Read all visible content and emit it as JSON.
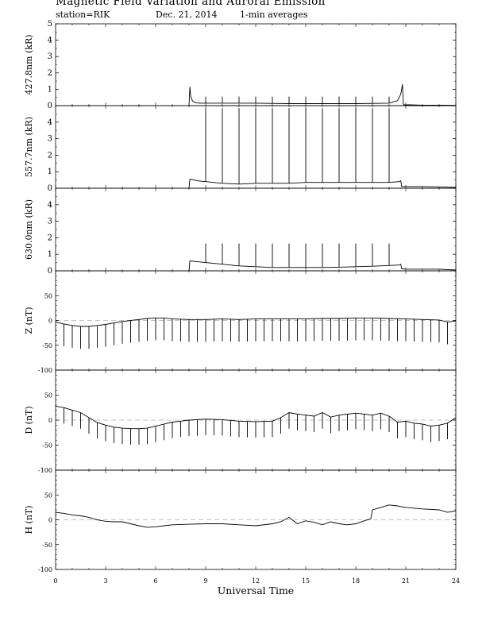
{
  "header": {
    "title": "Magnetic Field Variation and Auroral Emission",
    "station": "station=RIK",
    "date": "Dec. 21, 2014",
    "averaging": "1-min averages"
  },
  "chart_data": {
    "type": "line",
    "xlabel": "Universal Time",
    "x_ticks": [
      "0",
      "3",
      "6",
      "9",
      "12",
      "15",
      "18",
      "21",
      "24"
    ],
    "xlim": [
      0,
      24
    ],
    "panels": [
      {
        "id": "p4278",
        "ylabel": "427.8nm (kR)",
        "ylim": [
          0,
          5
        ],
        "y_ticks": [
          "0",
          "1",
          "2",
          "3",
          "4",
          "5"
        ],
        "zero_line": false,
        "series": {
          "x": [
            8.0,
            8.05,
            8.1,
            8.2,
            8.35,
            8.6,
            9.0,
            10.0,
            12.0,
            14.0,
            16.0,
            18.0,
            20.0,
            20.5,
            20.7,
            20.8,
            20.85,
            20.9,
            21.2,
            22.0,
            23.0,
            24.0
          ],
          "y": [
            0.0,
            1.15,
            0.6,
            0.3,
            0.2,
            0.15,
            0.15,
            0.15,
            0.15,
            0.12,
            0.12,
            0.12,
            0.15,
            0.3,
            0.7,
            1.3,
            0.1,
            0.05,
            0.05,
            0.03,
            0.03,
            0.02
          ]
        },
        "spikes": {
          "x": [
            9,
            10,
            11,
            12,
            13,
            14,
            15,
            16,
            17,
            18,
            19,
            20
          ],
          "peak": 0.55
        }
      },
      {
        "id": "p5577",
        "ylabel": "557.7nm (kR)",
        "ylim": [
          0,
          5
        ],
        "y_ticks": [
          "0",
          "1",
          "2",
          "3",
          "4"
        ],
        "zero_line": false,
        "series": {
          "x": [
            8.0,
            8.05,
            8.5,
            9.0,
            10.0,
            11.0,
            12.0,
            13.0,
            14.0,
            15.0,
            16.0,
            17.0,
            18.0,
            19.0,
            20.0,
            20.6,
            20.7,
            20.75,
            21.0,
            22.0,
            23.0,
            24.0
          ],
          "y": [
            0.0,
            0.55,
            0.45,
            0.4,
            0.3,
            0.25,
            0.3,
            0.3,
            0.3,
            0.35,
            0.35,
            0.35,
            0.35,
            0.35,
            0.35,
            0.4,
            0.45,
            0.1,
            0.1,
            0.1,
            0.08,
            0.05
          ]
        },
        "spikes": {
          "x": [
            9,
            10,
            11,
            12,
            13,
            14,
            15,
            16,
            17,
            18,
            19,
            20
          ],
          "peak": 4.85
        }
      },
      {
        "id": "p6300",
        "ylabel": "630.0nm (kR)",
        "ylim": [
          0,
          5
        ],
        "y_ticks": [
          "0",
          "1",
          "2",
          "3",
          "4"
        ],
        "zero_line": false,
        "series": {
          "x": [
            8.0,
            8.05,
            9.0,
            10.0,
            11.0,
            12.0,
            13.0,
            14.0,
            15.0,
            16.0,
            17.0,
            18.0,
            19.0,
            20.0,
            20.6,
            20.7,
            20.75,
            21.0,
            22.0,
            23.0,
            24.0
          ],
          "y": [
            0.0,
            0.6,
            0.5,
            0.4,
            0.3,
            0.25,
            0.2,
            0.2,
            0.2,
            0.2,
            0.22,
            0.25,
            0.28,
            0.32,
            0.35,
            0.4,
            0.12,
            0.1,
            0.1,
            0.1,
            0.05
          ]
        },
        "spikes": {
          "x": [
            9,
            10,
            11,
            12,
            13,
            14,
            15,
            16,
            17,
            18,
            19,
            20
          ],
          "peak": 1.65
        }
      },
      {
        "id": "pZ",
        "ylabel": "Z (nT)",
        "ylim": [
          -100,
          100
        ],
        "y_ticks": [
          "-100",
          "-50",
          "0",
          "50"
        ],
        "zero_line": true,
        "series": {
          "x": [
            0.0,
            0.5,
            1.0,
            1.5,
            2.0,
            2.5,
            3.0,
            3.5,
            4.0,
            4.5,
            5.0,
            5.5,
            6.0,
            6.5,
            7.0,
            8.0,
            9.0,
            10.0,
            11.0,
            12.0,
            13.0,
            14.0,
            15.0,
            16.0,
            17.0,
            18.0,
            19.0,
            20.0,
            21.0,
            22.0,
            23.0,
            23.5,
            24.0
          ],
          "y": [
            -3,
            -7,
            -10,
            -12,
            -12,
            -10,
            -8,
            -5,
            -2,
            0,
            2,
            4,
            5,
            5,
            3,
            2,
            2,
            3,
            2,
            3,
            3,
            3,
            3,
            4,
            4,
            5,
            5,
            4,
            3,
            2,
            1,
            -3,
            -1
          ]
        },
        "spikes": {
          "x": [
            0.5,
            1.0,
            1.5,
            2.0,
            2.5,
            3.0,
            3.5,
            4.0,
            4.5,
            5.0,
            5.5,
            6.0,
            6.5,
            7.0,
            7.5,
            8.0,
            8.5,
            9.0,
            9.5,
            10.0,
            10.5,
            11.0,
            11.5,
            12.0,
            12.5,
            13.0,
            13.5,
            14.0,
            14.5,
            15.0,
            15.5,
            16.0,
            16.5,
            17.0,
            17.5,
            18.0,
            18.5,
            19.0,
            19.5,
            20.0,
            20.5,
            21.0,
            21.5,
            22.0,
            22.5,
            23.0,
            23.5
          ],
          "depth": 45
        }
      },
      {
        "id": "pD",
        "ylabel": "D (nT)",
        "ylim": [
          -100,
          100
        ],
        "y_ticks": [
          "-100",
          "-50",
          "0",
          "50"
        ],
        "zero_line": true,
        "series": {
          "x": [
            0.0,
            0.5,
            1.0,
            1.5,
            2.0,
            2.5,
            3.0,
            3.5,
            4.0,
            4.5,
            5.0,
            5.5,
            6.0,
            6.5,
            7.0,
            7.5,
            8.0,
            9.0,
            10.0,
            11.0,
            12.0,
            13.0,
            13.5,
            14.0,
            14.5,
            15.0,
            15.5,
            16.0,
            16.5,
            17.0,
            17.5,
            18.0,
            18.5,
            19.0,
            19.5,
            20.0,
            20.5,
            21.0,
            21.5,
            22.0,
            22.5,
            23.0,
            23.5,
            24.0
          ],
          "y": [
            28,
            25,
            20,
            15,
            5,
            -5,
            -10,
            -14,
            -16,
            -17,
            -17,
            -16,
            -12,
            -8,
            -4,
            -2,
            0,
            2,
            1,
            -2,
            -3,
            -2,
            5,
            15,
            12,
            10,
            8,
            15,
            6,
            10,
            12,
            14,
            12,
            10,
            14,
            8,
            -4,
            -2,
            -6,
            -8,
            -12,
            -10,
            -6,
            5
          ]
        },
        "spikes": {
          "x": [
            0.5,
            1.0,
            1.5,
            2.0,
            2.5,
            3.0,
            3.5,
            4.0,
            4.5,
            5.0,
            5.5,
            6.0,
            6.5,
            7.0,
            7.5,
            8.0,
            8.5,
            9.0,
            9.5,
            10.0,
            10.5,
            11.0,
            11.5,
            12.0,
            12.5,
            13.0,
            13.5,
            14.0,
            14.5,
            15.0,
            15.5,
            16.0,
            16.5,
            17.0,
            17.5,
            18.0,
            18.5,
            19.0,
            19.5,
            20.0,
            20.5,
            21.0,
            21.5,
            22.0,
            22.5,
            23.0,
            23.5
          ],
          "depth": 32
        }
      },
      {
        "id": "pH",
        "ylabel": "H (nT)",
        "ylim": [
          -100,
          100
        ],
        "y_ticks": [
          "-100",
          "-50",
          "0",
          "50"
        ],
        "zero_line": true,
        "series": {
          "x": [
            0.0,
            0.5,
            1.0,
            1.5,
            2.0,
            2.5,
            3.0,
            3.5,
            4.0,
            4.5,
            5.0,
            5.5,
            6.0,
            6.5,
            7.0,
            8.0,
            9.0,
            10.0,
            11.0,
            12.0,
            13.0,
            13.5,
            14.0,
            14.5,
            15.0,
            15.5,
            16.0,
            16.5,
            17.0,
            17.5,
            18.0,
            18.5,
            18.9,
            19.0,
            19.5,
            20.0,
            20.5,
            21.0,
            22.0,
            23.0,
            23.5,
            24.0
          ],
          "y": [
            15,
            13,
            10,
            8,
            5,
            0,
            -3,
            -4,
            -4,
            -8,
            -12,
            -15,
            -14,
            -12,
            -10,
            -9,
            -8,
            -8,
            -10,
            -12,
            -8,
            -4,
            5,
            -8,
            -2,
            -5,
            -10,
            -4,
            -8,
            -10,
            -8,
            -2,
            2,
            20,
            25,
            30,
            28,
            25,
            22,
            20,
            15,
            18
          ]
        },
        "spikes": null
      }
    ]
  }
}
